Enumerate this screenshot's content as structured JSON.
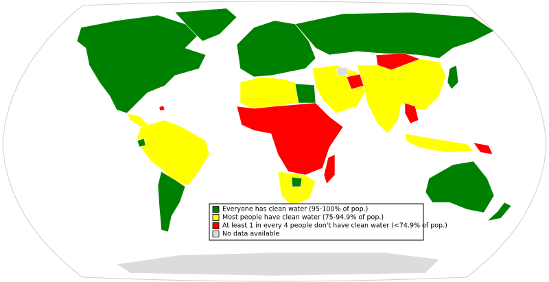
{
  "legend": {
    "items": [
      {
        "label": "Everyone has clean water (95-100% of pop.)",
        "color": "#008000"
      },
      {
        "label": "Most people have clean water (75-94.9% of pop.)",
        "color": "#ffff00"
      },
      {
        "label": "At least 1 in every 4 people don't have clean water (<74.9% of pop.)",
        "color": "#ff0000"
      },
      {
        "label": "No data available",
        "color": "#dcdcdc"
      }
    ]
  }
}
